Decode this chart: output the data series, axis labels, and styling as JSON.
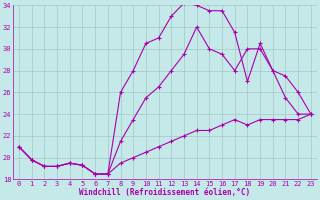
{
  "xlabel": "Windchill (Refroidissement éolien,°C)",
  "xlim": [
    -0.5,
    23.5
  ],
  "ylim": [
    18,
    34
  ],
  "yticks": [
    18,
    20,
    22,
    24,
    26,
    28,
    30,
    32,
    34
  ],
  "xticks": [
    0,
    1,
    2,
    3,
    4,
    5,
    6,
    7,
    8,
    9,
    10,
    11,
    12,
    13,
    14,
    15,
    16,
    17,
    18,
    19,
    20,
    21,
    22,
    23
  ],
  "bg_color": "#c5e8e8",
  "line_color": "#aa00aa",
  "grid_color": "#a0c8c8",
  "line1_x": [
    0,
    1,
    2,
    3,
    4,
    5,
    6,
    7,
    8,
    9,
    10,
    11,
    12,
    13,
    14,
    15,
    16,
    17,
    18,
    19,
    20,
    21,
    22,
    23
  ],
  "line1_y": [
    21.0,
    19.8,
    19.2,
    19.2,
    19.5,
    19.3,
    18.5,
    18.5,
    26.0,
    28.0,
    30.5,
    31.0,
    33.0,
    34.2,
    34.0,
    33.5,
    33.5,
    31.5,
    27.0,
    30.5,
    28.0,
    25.5,
    24.0,
    24.0
  ],
  "line2_x": [
    0,
    1,
    2,
    3,
    4,
    5,
    6,
    7,
    8,
    9,
    10,
    11,
    12,
    13,
    14,
    15,
    16,
    17,
    18,
    19,
    20,
    21,
    22,
    23
  ],
  "line2_y": [
    21.0,
    19.8,
    19.2,
    19.2,
    19.5,
    19.3,
    18.5,
    18.5,
    21.5,
    23.5,
    25.5,
    26.5,
    28.0,
    29.5,
    32.0,
    30.0,
    29.5,
    28.0,
    30.0,
    30.0,
    28.0,
    27.5,
    26.0,
    24.0
  ],
  "line3_x": [
    0,
    1,
    2,
    3,
    4,
    5,
    6,
    7,
    8,
    9,
    10,
    11,
    12,
    13,
    14,
    15,
    16,
    17,
    18,
    19,
    20,
    21,
    22,
    23
  ],
  "line3_y": [
    21.0,
    19.8,
    19.2,
    19.2,
    19.5,
    19.3,
    18.5,
    18.5,
    19.5,
    20.0,
    20.5,
    21.0,
    21.5,
    22.0,
    22.5,
    22.5,
    23.0,
    23.5,
    23.0,
    23.5,
    23.5,
    23.5,
    23.5,
    24.0
  ],
  "marker": "+",
  "markersize": 3,
  "linewidth": 0.8,
  "tick_fontsize": 5,
  "xlabel_fontsize": 5.5
}
